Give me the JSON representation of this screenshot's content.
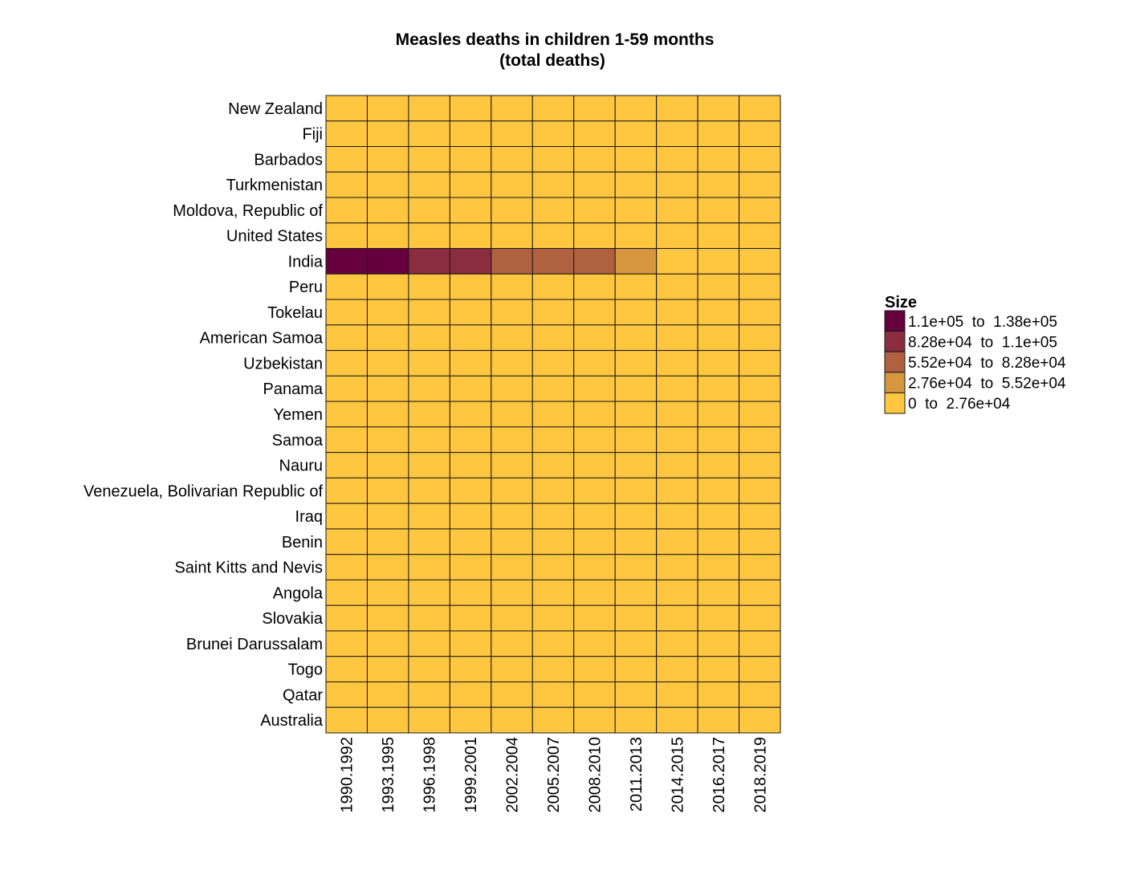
{
  "chart_data": {
    "type": "heatmap",
    "title": [
      "Measles deaths in children 1-59 months",
      "(total deaths)"
    ],
    "rows": [
      "New Zealand",
      "Fiji",
      "Barbados",
      "Turkmenistan",
      "Moldova, Republic of",
      "United States",
      "India",
      "Peru",
      "Tokelau",
      "American Samoa",
      "Uzbekistan",
      "Panama",
      "Yemen",
      "Samoa",
      "Nauru",
      "Venezuela, Bolivarian Republic of",
      "Iraq",
      "Benin",
      "Saint Kitts and Nevis",
      "Angola",
      "Slovakia",
      "Brunei Darussalam",
      "Togo",
      "Qatar",
      "Australia"
    ],
    "columns": [
      "1990.1992",
      "1993.1995",
      "1996.1998",
      "1999.2001",
      "2002.2004",
      "2005.2007",
      "2008.2010",
      "2011.2013",
      "2014.2015",
      "2016.2017",
      "2018.2019"
    ],
    "bins": [
      [
        0,
        4,
        4,
        3,
        3,
        3,
        3,
        3,
        1,
        0,
        0,
        0
      ],
      [
        0
      ]
    ],
    "india_bins": [
      4,
      4,
      3,
      3,
      2,
      2,
      2,
      1,
      0,
      0,
      0
    ],
    "legend": {
      "title": "Size",
      "entries": [
        {
          "label": "1.1e+05  to  1.38e+05",
          "color": "#67003f"
        },
        {
          "label": "8.28e+04  to  1.1e+05",
          "color": "#8b2d40"
        },
        {
          "label": "5.52e+04  to  8.28e+04",
          "color": "#b06240"
        },
        {
          "label": "2.76e+04  to  5.52e+04",
          "color": "#d69640"
        },
        {
          "label": "0  to  2.76e+04",
          "color": "#ffc640"
        }
      ]
    },
    "bin_colors": [
      "#ffc640",
      "#d69640",
      "#b06240",
      "#8b2d40",
      "#67003f"
    ]
  }
}
